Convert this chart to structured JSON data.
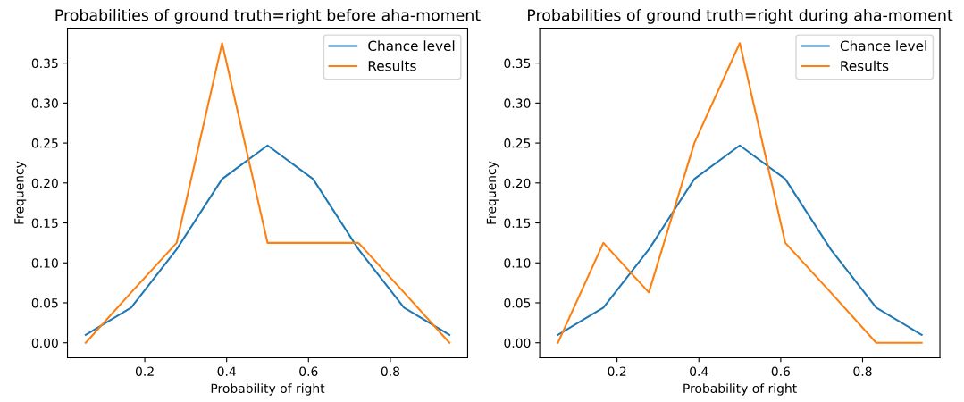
{
  "chart_data": [
    {
      "type": "line",
      "title": "Probabilities of ground truth=right before aha-moment",
      "xlabel": "Probability of right",
      "ylabel": "Frequency",
      "x": [
        0.0556,
        0.1667,
        0.2778,
        0.3889,
        0.5,
        0.6111,
        0.7222,
        0.8333,
        0.9444
      ],
      "series": [
        {
          "name": "Chance level",
          "color": "#1f77b4",
          "values": [
            0.01,
            0.044,
            0.117,
            0.205,
            0.247,
            0.205,
            0.117,
            0.044,
            0.01
          ]
        },
        {
          "name": "Results",
          "color": "#ff7f0e",
          "values": [
            0,
            0.063,
            0.125,
            0.375,
            0.125,
            0.125,
            0.125,
            0.063,
            0
          ]
        }
      ],
      "xlim": [
        0.0111,
        0.9889
      ],
      "ylim": [
        -0.01875,
        0.39375
      ],
      "xticks": [
        0.2,
        0.4,
        0.6,
        0.8
      ],
      "yticks": [
        {
          "value": 0,
          "label": "0.00"
        },
        {
          "value": 0.05,
          "label": "0.05"
        },
        {
          "value": 0.1,
          "label": "0.10"
        },
        {
          "value": 0.15,
          "label": "0.15"
        },
        {
          "value": 0.2,
          "label": "0.20"
        },
        {
          "value": 0.25,
          "label": "0.25"
        },
        {
          "value": 0.3,
          "label": "0.30"
        },
        {
          "value": 0.35,
          "label": "0.35"
        }
      ],
      "legend": "top right",
      "grid": false
    },
    {
      "type": "line",
      "title": "Probabilities of ground truth=right during aha-moment",
      "xlabel": "Probability of right",
      "ylabel": "Frequency",
      "x": [
        0.0556,
        0.1667,
        0.2778,
        0.3889,
        0.5,
        0.6111,
        0.7222,
        0.8333,
        0.9444
      ],
      "series": [
        {
          "name": "Chance level",
          "color": "#1f77b4",
          "values": [
            0.01,
            0.044,
            0.117,
            0.205,
            0.247,
            0.205,
            0.117,
            0.044,
            0.01
          ]
        },
        {
          "name": "Results",
          "color": "#ff7f0e",
          "values": [
            0,
            0.125,
            0.063,
            0.25,
            0.375,
            0.125,
            0.063,
            0,
            0
          ]
        }
      ],
      "xlim": [
        0.0111,
        0.9889
      ],
      "ylim": [
        -0.01875,
        0.39375
      ],
      "xticks": [
        0.2,
        0.4,
        0.6,
        0.8
      ],
      "yticks": [
        {
          "value": 0,
          "label": "0.00"
        },
        {
          "value": 0.05,
          "label": "0.05"
        },
        {
          "value": 0.1,
          "label": "0.10"
        },
        {
          "value": 0.15,
          "label": "0.15"
        },
        {
          "value": 0.2,
          "label": "0.20"
        },
        {
          "value": 0.25,
          "label": "0.25"
        },
        {
          "value": 0.3,
          "label": "0.30"
        },
        {
          "value": 0.35,
          "label": "0.35"
        }
      ],
      "legend": "top right",
      "grid": false
    }
  ]
}
